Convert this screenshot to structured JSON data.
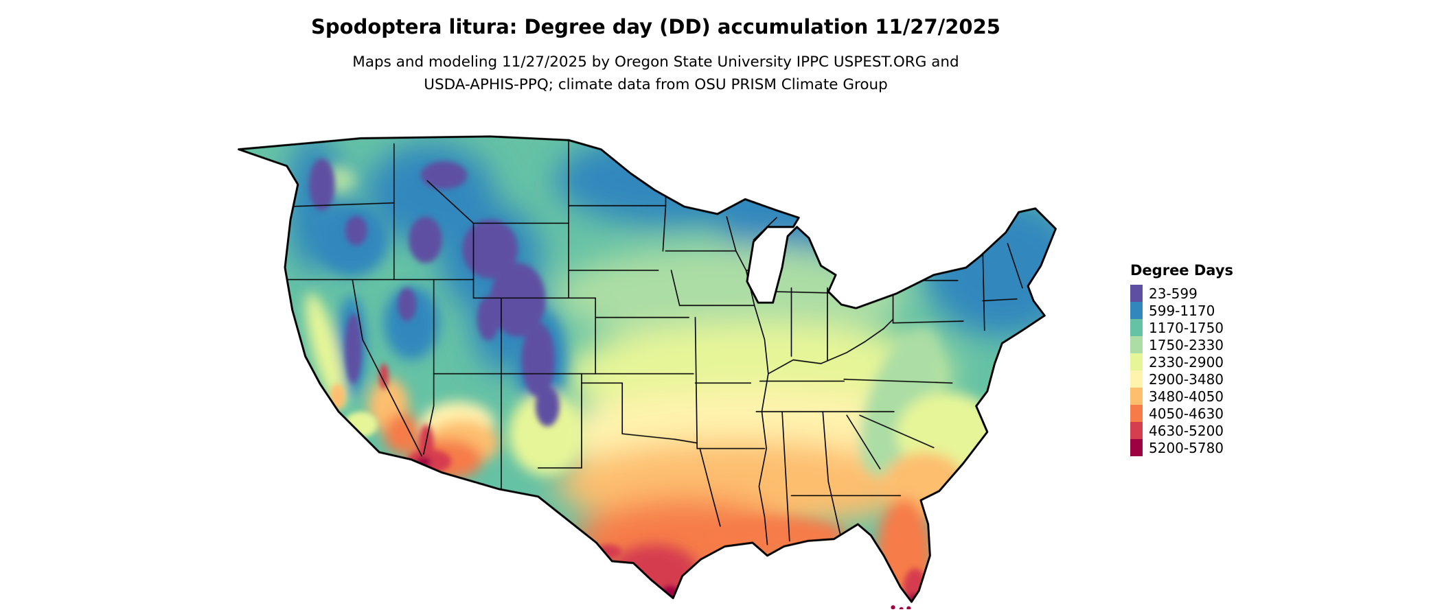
{
  "header": {
    "title": "Spodoptera litura: Degree day (DD) accumulation 11/27/2025",
    "subtitle_line1": "Maps and modeling 11/27/2025 by Oregon State University IPPC USPEST.ORG and",
    "subtitle_line2": "USDA-APHIS-PPQ; climate data from OSU PRISM Climate Group"
  },
  "legend": {
    "title": "Degree Days",
    "items": [
      {
        "label": "23-599",
        "color": "#5e4fa2"
      },
      {
        "label": "599-1170",
        "color": "#3288bd"
      },
      {
        "label": "1170-1750",
        "color": "#66c2a5"
      },
      {
        "label": "1750-2330",
        "color": "#abdda4"
      },
      {
        "label": "2330-2900",
        "color": "#e6f598"
      },
      {
        "label": "2900-3480",
        "color": "#fff3ae"
      },
      {
        "label": "3480-4050",
        "color": "#fdbe6e"
      },
      {
        "label": "4050-4630",
        "color": "#f67b49"
      },
      {
        "label": "4630-5200",
        "color": "#d53e4f"
      },
      {
        "label": "5200-5780",
        "color": "#9e0142"
      }
    ]
  },
  "map": {
    "description": "Continental United States raster map of degree day accumulation with black state borders"
  },
  "chart_data": {
    "type": "choropleth_map",
    "region": "Continental United States",
    "variable": "Degree day (DD) accumulation",
    "species": "Spodoptera litura",
    "date": "11/27/2025",
    "legend_title": "Degree Days",
    "legend_position": "right",
    "class_ranges": [
      "23-599",
      "599-1170",
      "1170-1750",
      "1750-2330",
      "2330-2900",
      "2900-3480",
      "3480-4050",
      "4050-4630",
      "4630-5200",
      "5200-5780"
    ]
  }
}
